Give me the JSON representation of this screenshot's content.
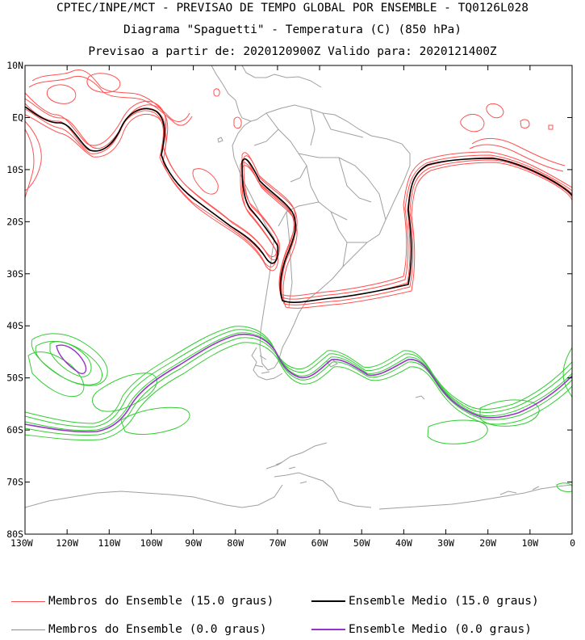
{
  "title": {
    "line1": "CPTEC/INPE/MCT - PREVISAO DE TEMPO GLOBAL POR ENSEMBLE - TQ0126L028",
    "line2": "Diagrama \"Spaguetti\" - Temperatura (C) (850 hPa)",
    "line3": "Previsao a partir de: 2020120900Z  Valido para: 2020121400Z"
  },
  "map": {
    "lon_range": [
      -130,
      0
    ],
    "lat_range": [
      -80,
      10
    ],
    "lat_ticks": [
      "10N",
      "EQ",
      "10S",
      "20S",
      "30S",
      "40S",
      "50S",
      "60S",
      "70S",
      "80S"
    ],
    "lon_ticks": [
      "130W",
      "120W",
      "110W",
      "100W",
      "90W",
      "80W",
      "70W",
      "60W",
      "50W",
      "40W",
      "30W",
      "20W",
      "10W",
      "0"
    ],
    "colors": {
      "coastline": "#a0a0a0",
      "warm_members": "#ff5050",
      "warm_mean": "#000000",
      "cold_members": "#33cc33",
      "cold_mean": "#9933cc"
    }
  },
  "legend": {
    "warm_members": "Membros do Ensemble (15.0 graus)",
    "warm_mean": "Ensemble Medio (15.0 graus)",
    "cold_members": "Membros do Ensemble (0.0 graus)",
    "cold_mean": "Ensemble Medio (0.0 graus)"
  }
}
